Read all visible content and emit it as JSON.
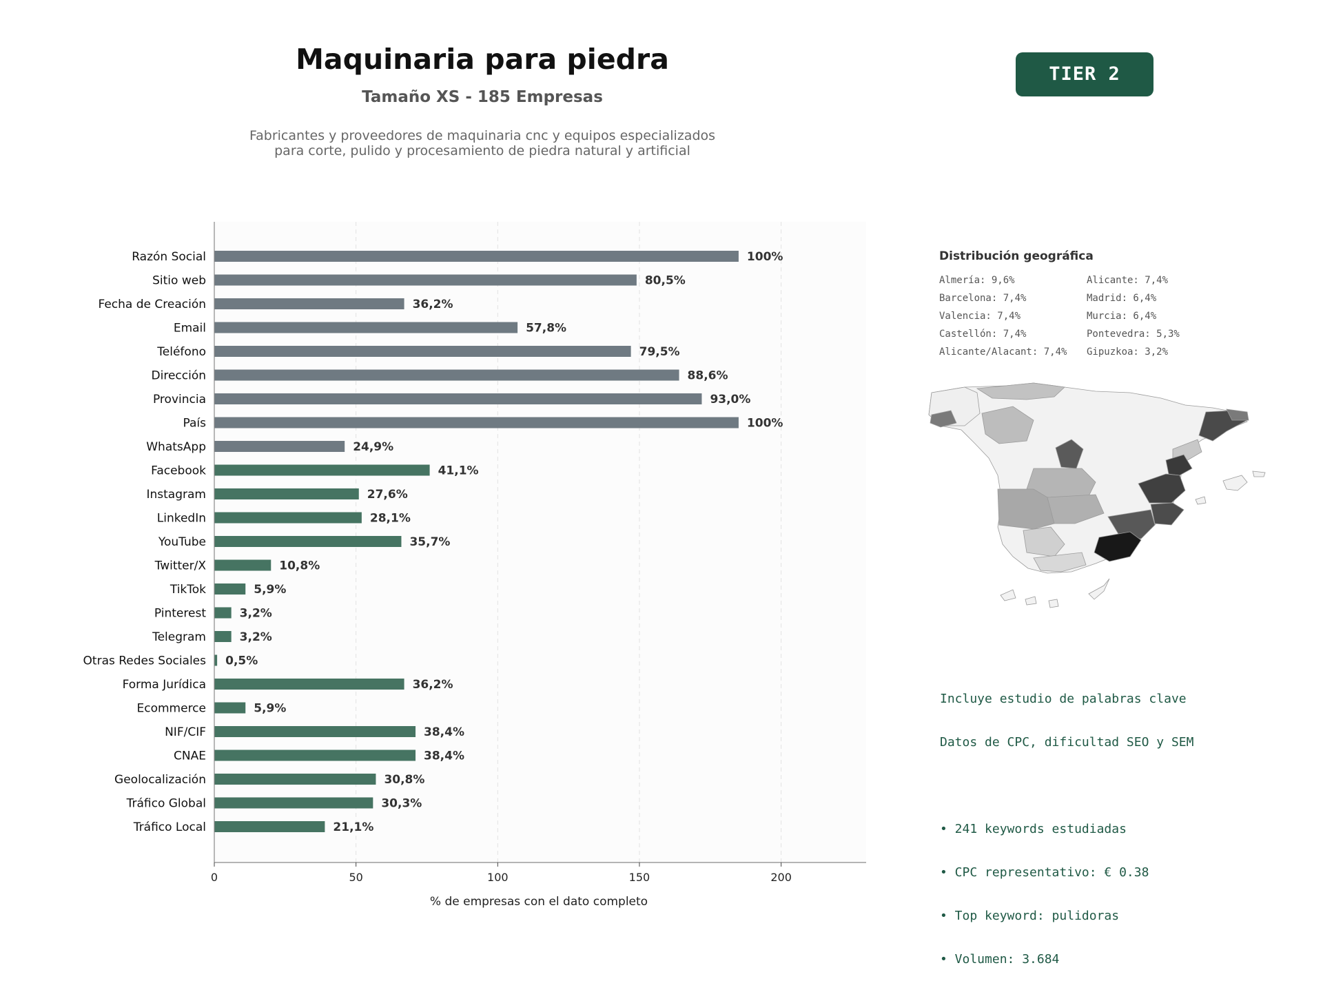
{
  "header": {
    "title": "Maquinaria para piedra",
    "subtitle": "Tamaño XS - 185 Empresas",
    "description": [
      "Fabricantes y proveedores de maquinaria cnc y equipos especializados",
      "para corte, pulido y procesamiento de piedra natural y artificial"
    ],
    "tier_badge": "TIER 2"
  },
  "colors": {
    "basic_bar": "#6f7a82",
    "digital_bar": "#467462",
    "brand_dark": "#1f5945"
  },
  "chart_data": {
    "type": "bar",
    "orientation": "horizontal",
    "xlabel": "% de empresas con el dato completo",
    "xlim": [
      0,
      230
    ],
    "xticks": [
      0,
      50,
      100,
      150,
      200
    ],
    "grid": "vertical dashed",
    "categories": [
      "Razón Social",
      "Sitio web",
      "Fecha de Creación",
      "Email",
      "Teléfono",
      "Dirección",
      "Provincia",
      "País",
      "WhatsApp",
      "Facebook",
      "Instagram",
      "LinkedIn",
      "YouTube",
      "Twitter/X",
      "TikTok",
      "Pinterest",
      "Telegram",
      "Otras Redes Sociales",
      "Forma Jurídica",
      "Ecommerce",
      "NIF/CIF",
      "CNAE",
      "Geolocalización",
      "Tráfico Global",
      "Tráfico Local"
    ],
    "values": [
      185,
      149,
      67,
      107,
      147,
      164,
      172,
      185,
      46,
      76,
      51,
      52,
      66,
      20,
      11,
      6,
      6,
      1,
      67,
      11,
      71,
      71,
      57,
      56,
      39
    ],
    "data_labels": [
      "100%",
      "80,5%",
      "36,2%",
      "57,8%",
      "79,5%",
      "88,6%",
      "93,0%",
      "100%",
      "24,9%",
      "41,1%",
      "27,6%",
      "28,1%",
      "35,7%",
      "10,8%",
      "5,9%",
      "3,2%",
      "3,2%",
      "0,5%",
      "36,2%",
      "5,9%",
      "38,4%",
      "38,4%",
      "30,8%",
      "30,3%",
      "21,1%"
    ],
    "groups": [
      "basic",
      "basic",
      "basic",
      "basic",
      "basic",
      "basic",
      "basic",
      "basic",
      "basic",
      "digital",
      "digital",
      "digital",
      "digital",
      "digital",
      "digital",
      "digital",
      "digital",
      "digital",
      "digital",
      "digital",
      "digital",
      "digital",
      "digital",
      "digital",
      "digital"
    ]
  },
  "geo": {
    "title": "Distribución geográfica",
    "left_column": [
      "Almería: 9,6%",
      "Barcelona: 7,4%",
      "Valencia: 7,4%",
      "Castellón: 7,4%",
      "Alicante/Alacant: 7,4%"
    ],
    "right_column": [
      "Alicante: 7,4%",
      "Madrid: 6,4%",
      "Murcia: 6,4%",
      "Pontevedra: 5,3%",
      "Gipuzkoa: 3,2%"
    ]
  },
  "keywords": {
    "lines": [
      "Incluye estudio de palabras clave",
      "Datos de CPC, dificultad SEO y SEM",
      "",
      "• 241 keywords estudiadas",
      "• CPC representativo: € 0.38",
      "• Top keyword: pulidoras",
      "• Volumen: 3.684"
    ]
  }
}
